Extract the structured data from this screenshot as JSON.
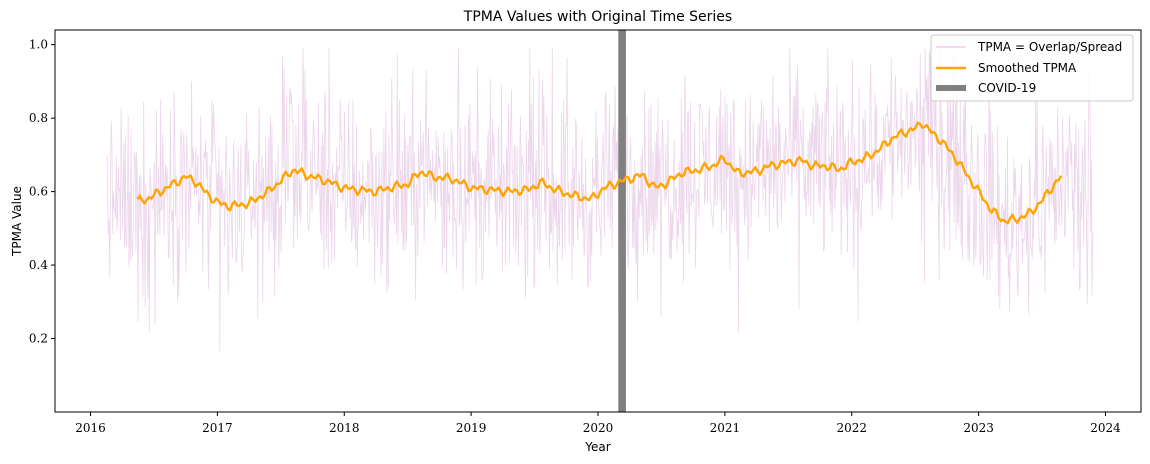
{
  "chart_data": {
    "type": "line",
    "title": "TPMA Values with Original Time Series",
    "xlabel": "Year",
    "ylabel": "TPMA Value",
    "xlim": [
      2015.72,
      2024.28
    ],
    "ylim": [
      0.0,
      1.04
    ],
    "x_ticks": [
      2016,
      2017,
      2018,
      2019,
      2020,
      2021,
      2022,
      2023,
      2024
    ],
    "y_ticks": [
      0.2,
      0.4,
      0.6,
      0.8,
      1.0
    ],
    "y_tick_labels": [
      "0.2",
      "0.4",
      "0.6",
      "0.8",
      "1.0"
    ],
    "grid": false,
    "legend_position": "top-right",
    "legend": [
      {
        "label": "TPMA = Overlap/Spread",
        "color": "#e6c8e4",
        "style": "thin-line"
      },
      {
        "label": "Smoothed TPMA",
        "color": "#ffa500",
        "style": "thick-line"
      },
      {
        "label": "COVID-19",
        "color": "#808080",
        "style": "band"
      }
    ],
    "covid_band": {
      "label": "COVID-19",
      "x_start": 2020.16,
      "x_end": 2020.22,
      "color": "#808080"
    },
    "raw_series": {
      "name": "TPMA = Overlap/Spread",
      "color": "#e6c8e4",
      "x_start": 2016.13,
      "x_end": 2023.9,
      "y_min": 0.05,
      "y_max": 0.99
    },
    "smoothed_series": {
      "name": "Smoothed TPMA",
      "color": "#ffa500",
      "x": [
        2016.37,
        2016.45,
        2016.55,
        2016.65,
        2016.75,
        2016.82,
        2016.9,
        2017.0,
        2017.1,
        2017.25,
        2017.4,
        2017.5,
        2017.6,
        2017.7,
        2017.85,
        2018.0,
        2018.1,
        2018.25,
        2018.35,
        2018.5,
        2018.6,
        2018.7,
        2018.85,
        2019.0,
        2019.15,
        2019.3,
        2019.45,
        2019.55,
        2019.7,
        2019.85,
        2019.95,
        2020.05,
        2020.2,
        2020.35,
        2020.45,
        2020.55,
        2020.65,
        2020.8,
        2020.9,
        2021.0,
        2021.1,
        2021.25,
        2021.35,
        2021.5,
        2021.6,
        2021.7,
        2021.8,
        2021.9,
        2022.0,
        2022.1,
        2022.2,
        2022.3,
        2022.4,
        2022.5,
        2022.55,
        2022.6,
        2022.7,
        2022.8,
        2022.9,
        2023.0,
        2023.1,
        2023.2,
        2023.3,
        2023.4,
        2023.5,
        2023.55,
        2023.65
      ],
      "y": [
        0.574,
        0.58,
        0.6,
        0.62,
        0.64,
        0.63,
        0.6,
        0.57,
        0.56,
        0.568,
        0.6,
        0.63,
        0.66,
        0.645,
        0.63,
        0.61,
        0.605,
        0.6,
        0.61,
        0.62,
        0.655,
        0.64,
        0.635,
        0.61,
        0.605,
        0.6,
        0.605,
        0.625,
        0.6,
        0.585,
        0.58,
        0.61,
        0.63,
        0.645,
        0.61,
        0.625,
        0.65,
        0.66,
        0.67,
        0.69,
        0.65,
        0.655,
        0.67,
        0.68,
        0.685,
        0.67,
        0.67,
        0.66,
        0.68,
        0.69,
        0.71,
        0.74,
        0.76,
        0.77,
        0.79,
        0.77,
        0.74,
        0.7,
        0.65,
        0.6,
        0.55,
        0.52,
        0.525,
        0.54,
        0.575,
        0.6,
        0.64
      ]
    }
  }
}
